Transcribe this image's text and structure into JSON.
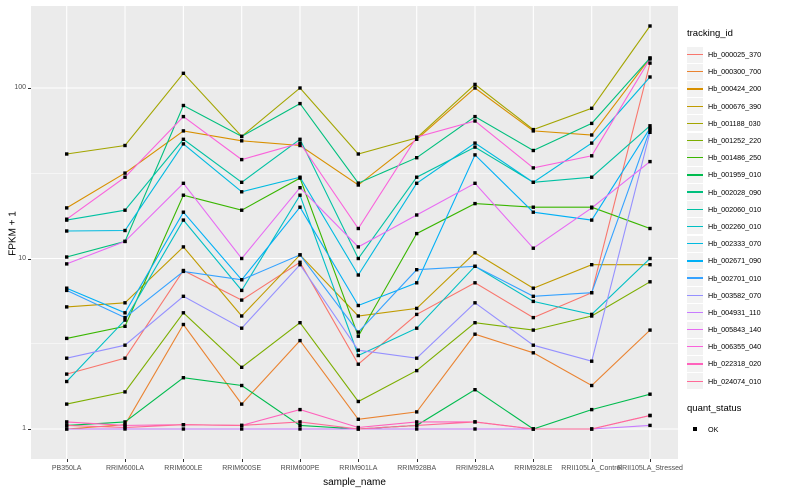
{
  "theme": {
    "panel_bg": "#EBEBEB",
    "grid_color": "#FFFFFF",
    "tick_color": "#333333",
    "tick_label_color": "#4D4D4D",
    "text_color": "#000000",
    "legend_key_bg": "#F2F2F2",
    "marker_color": "#000000"
  },
  "chart_data": {
    "type": "line",
    "title": "",
    "xlabel": "sample_name",
    "ylabel": "FPKM + 1",
    "y_scale": "log10",
    "y_ticks": [
      1,
      10,
      100
    ],
    "y_minor_ticks": [
      3.1623,
      31.623
    ],
    "ylim_log": [
      0.96,
      290
    ],
    "grid": true,
    "legend_position": "right",
    "marker": {
      "shape": "square",
      "color": "#000000",
      "size": 3.4
    },
    "x_categories": [
      "PB350LA",
      "RRIM600LA",
      "RRIM600LE",
      "RRIM600SE",
      "RRIM600PE",
      "RRIM901LA",
      "RRIM928BA",
      "RRIM928LA",
      "RRIM928LE",
      "RRII105LA_Control",
      "RRII105LA_Stressed"
    ],
    "legend": {
      "title": "tracking_id"
    },
    "quant_legend": {
      "title": "quant_status",
      "items": [
        {
          "label": "OK",
          "marker": "black-square"
        }
      ]
    },
    "series": [
      {
        "name": "Hb_000025_370",
        "color": "#F8766D",
        "values": [
          2.1,
          2.6,
          8.5,
          5.7,
          9.5,
          2.4,
          4.7,
          7.2,
          4.5,
          6.3,
          140
        ]
      },
      {
        "name": "Hb_000300_700",
        "color": "#EA8331",
        "values": [
          1.0,
          1.06,
          4.1,
          1.4,
          3.3,
          1.14,
          1.26,
          3.6,
          2.8,
          1.8,
          3.8
        ]
      },
      {
        "name": "Hb_000424_200",
        "color": "#D89000",
        "values": [
          19.8,
          31.7,
          56,
          49,
          46,
          27,
          50,
          100,
          56,
          53,
          150
        ]
      },
      {
        "name": "Hb_000676_390",
        "color": "#C09B00",
        "values": [
          5.2,
          5.5,
          11.7,
          4.6,
          10.5,
          4.6,
          5.1,
          10.8,
          6.7,
          9.2,
          9.2
        ]
      },
      {
        "name": "Hb_001188_030",
        "color": "#A3A500",
        "values": [
          41,
          46,
          122,
          52,
          100,
          41,
          51,
          105,
          57,
          76,
          231
        ]
      },
      {
        "name": "Hb_001252_220",
        "color": "#7CAE00",
        "values": [
          1.4,
          1.65,
          4.8,
          2.3,
          4.2,
          1.45,
          2.2,
          4.2,
          3.8,
          4.6,
          7.3
        ]
      },
      {
        "name": "Hb_001486_250",
        "color": "#39B600",
        "values": [
          3.4,
          4.0,
          23.5,
          19.2,
          29.6,
          3.5,
          14,
          21,
          20,
          20,
          15
        ]
      },
      {
        "name": "Hb_001959_010",
        "color": "#00BB4E",
        "values": [
          1.05,
          1.1,
          2.0,
          1.8,
          1.05,
          1.0,
          1.05,
          1.7,
          1.0,
          1.3,
          1.6
        ]
      },
      {
        "name": "Hb_002028_090",
        "color": "#00BF7D",
        "values": [
          10.2,
          12.6,
          79,
          52,
          81,
          27.7,
          39,
          68,
          43,
          62,
          150
        ]
      },
      {
        "name": "Hb_002060_010",
        "color": "#00C1A3",
        "values": [
          16.8,
          19.2,
          50,
          28,
          50,
          10,
          30,
          45,
          28,
          30,
          60
        ]
      },
      {
        "name": "Hb_002260_010",
        "color": "#00BFC4",
        "values": [
          1.9,
          4.35,
          16.8,
          6.5,
          23.5,
          2.7,
          3.9,
          9.0,
          5.6,
          4.7,
          10
        ]
      },
      {
        "name": "Hb_002333_070",
        "color": "#00BAE0",
        "values": [
          14.5,
          14.6,
          47,
          24.6,
          30,
          8.0,
          27.6,
          47.5,
          28,
          47.5,
          116
        ]
      },
      {
        "name": "Hb_002671_090",
        "color": "#00B0F6",
        "values": [
          6.7,
          4.8,
          18.7,
          7.5,
          20,
          5.3,
          7.2,
          40.5,
          18.7,
          16.8,
          58
        ]
      },
      {
        "name": "Hb_002701_010",
        "color": "#35A2FF",
        "values": [
          6.5,
          4.5,
          8.4,
          7.5,
          10.5,
          3.7,
          8.6,
          9.0,
          6.0,
          6.3,
          57
        ]
      },
      {
        "name": "Hb_003582_070",
        "color": "#9590FF",
        "values": [
          2.6,
          3.1,
          6.0,
          3.9,
          9.2,
          2.9,
          2.6,
          5.5,
          3.1,
          2.5,
          55
        ]
      },
      {
        "name": "Hb_004931_110",
        "color": "#C77CFF",
        "values": [
          1.0,
          1.0,
          1.0,
          1.0,
          1.0,
          1.0,
          1.0,
          1.0,
          1.0,
          1.0,
          1.05
        ]
      },
      {
        "name": "Hb_005843_140",
        "color": "#E76BF3",
        "values": [
          9.3,
          12.6,
          27.6,
          10,
          26,
          11.7,
          18,
          27.6,
          11.5,
          19.8,
          37
        ]
      },
      {
        "name": "Hb_006355_040",
        "color": "#FA62DB",
        "values": [
          17,
          30,
          68,
          38,
          47.5,
          15,
          51.5,
          64,
          34,
          40,
          148
        ]
      },
      {
        "name": "Hb_022318_020",
        "color": "#FF62BC",
        "values": [
          1.1,
          1.05,
          1.06,
          1.05,
          1.3,
          1.02,
          1.1,
          1.1,
          1.0,
          1.0,
          1.2
        ]
      },
      {
        "name": "Hb_024074_010",
        "color": "#FF6A98",
        "values": [
          1.05,
          1.02,
          1.06,
          1.05,
          1.1,
          1.0,
          1.05,
          1.1,
          1.0,
          1.0,
          1.2
        ]
      }
    ]
  }
}
